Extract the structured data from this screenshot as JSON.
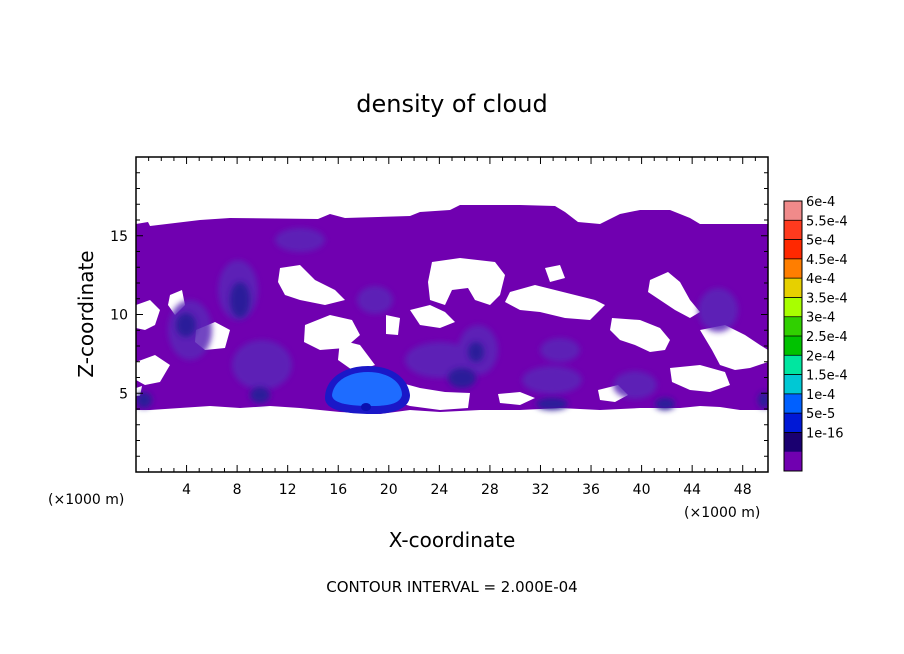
{
  "chart_data": {
    "type": "heatmap",
    "title": "density of cloud",
    "xlabel": "X-coordinate",
    "ylabel": "Z-coordinate",
    "x_unit_left": "(×1000 m)",
    "x_unit_right": "(×1000 m)",
    "xlim": [
      0,
      50
    ],
    "ylim": [
      0,
      20
    ],
    "x_ticks": [
      4,
      8,
      12,
      16,
      20,
      24,
      28,
      32,
      36,
      40,
      44,
      48
    ],
    "y_ticks": [
      5,
      10,
      15
    ],
    "contour_interval_text": "CONTOUR INTERVAL = 2.000E-04",
    "colorbar": {
      "labels": [
        "6e-4",
        "5.5e-4",
        "5e-4",
        "4.5e-4",
        "4e-4",
        "3.5e-4",
        "3e-4",
        "2.5e-4",
        "2e-4",
        "1.5e-4",
        "1e-4",
        "5e-5",
        "1e-16"
      ],
      "colors": [
        "#f08a8a",
        "#ff3a1e",
        "#ff2800",
        "#ff7e00",
        "#e6d000",
        "#a8ff00",
        "#30d000",
        "#00c200",
        "#00e6a0",
        "#00c8d4",
        "#0060ff",
        "#0018d6",
        "#1a0070",
        "#7000b0"
      ]
    },
    "cloud_layer": {
      "base_z": 4.0,
      "top_z": 15.5,
      "background_value": "1e-16"
    },
    "features": [
      {
        "x": 18,
        "z": 5.3,
        "max_value": "1e-4",
        "description_level": "1e-4"
      },
      {
        "x": 4,
        "z": 9.5,
        "max_value": "5e-5",
        "description_level": "5e-5"
      },
      {
        "x": 8,
        "z": 11.2,
        "max_value": "5e-5",
        "description_level": "5e-5"
      },
      {
        "x": 10,
        "z": 7.5,
        "max_value": "5e-5",
        "description_level": "5e-5"
      },
      {
        "x": 26,
        "z": 7.8,
        "max_value": "5e-5",
        "description_level": "5e-5"
      },
      {
        "x": 33,
        "z": 4.5,
        "max_value": "5e-5",
        "description_level": "5e-5"
      },
      {
        "x": 44,
        "z": 6.5,
        "max_value": "5e-5",
        "description_level": "5e-5"
      }
    ]
  }
}
